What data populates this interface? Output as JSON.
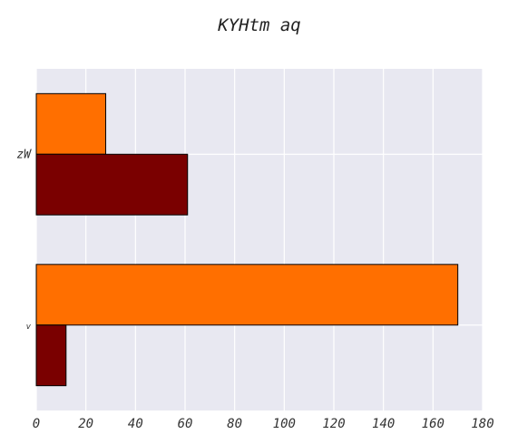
{
  "chart_data": {
    "type": "bar",
    "orientation": "horizontal",
    "title": "KYHtm aq",
    "xlabel": "",
    "ylabel": "",
    "categories": [
      "zW",
      "v"
    ],
    "series": [
      {
        "color": "#ff6f00",
        "values": [
          28,
          170
        ]
      },
      {
        "color": "#7a0000",
        "values": [
          61,
          12
        ]
      }
    ],
    "xlim": [
      0,
      180
    ],
    "xticks": [
      0,
      20,
      40,
      60,
      80,
      100,
      120,
      140,
      160,
      180
    ],
    "grid": true,
    "background": "#e8e8f1",
    "bar_edge_color": "#000000"
  }
}
